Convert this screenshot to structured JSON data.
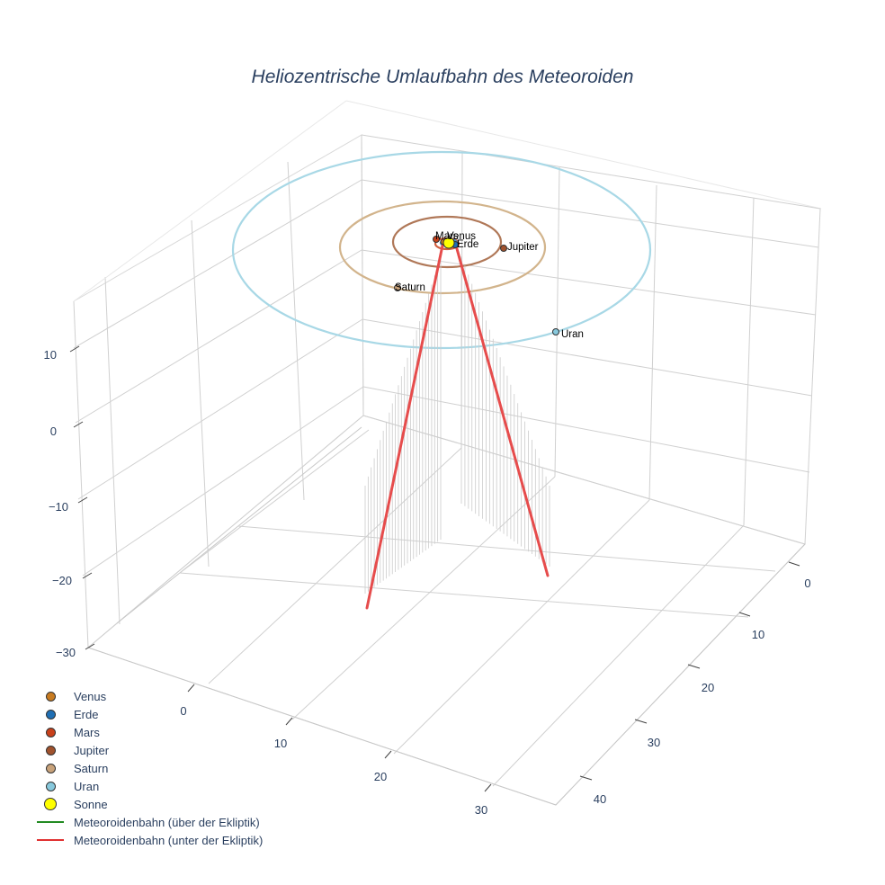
{
  "chart_data": {
    "type": "scatter3d",
    "title": "Heliozentrische Umlaufbahn des Meteoroiden",
    "axes": {
      "x": {
        "ticks": [
          "0",
          "10",
          "20",
          "30"
        ],
        "range_approx": [
          -3,
          35
        ]
      },
      "y": {
        "ticks": [
          "0",
          "10",
          "20",
          "30",
          "40"
        ],
        "range_approx": [
          -3,
          45
        ]
      },
      "z": {
        "ticks": [
          "10",
          "0",
          "−10",
          "−20",
          "−30"
        ],
        "range_approx": [
          -30,
          16
        ]
      }
    },
    "legend_position": "bottom-left",
    "series": [
      {
        "name": "Venus",
        "type": "marker",
        "color": "#c87b20",
        "label": "Venus"
      },
      {
        "name": "Erde",
        "type": "marker",
        "color": "#1f6fb4",
        "label": "Erde"
      },
      {
        "name": "Mars",
        "type": "marker",
        "color": "#c8401a",
        "label": "Mars"
      },
      {
        "name": "Jupiter",
        "type": "marker",
        "color": "#a0522d",
        "label": "Jupiter"
      },
      {
        "name": "Saturn",
        "type": "marker",
        "color": "#c8a27a",
        "label": "Saturn"
      },
      {
        "name": "Uran",
        "type": "marker",
        "color": "#87c8dc",
        "label": "Uran"
      },
      {
        "name": "Sonne",
        "type": "marker",
        "color": "#ffff00",
        "label": ""
      },
      {
        "name": "Meteoroidenbahn (über der Ekliptik)",
        "type": "line",
        "color": "#228b22"
      },
      {
        "name": "Meteoroidenbahn (unter der Ekliptik)",
        "type": "line",
        "color": "#e03030"
      }
    ],
    "orbits": [
      {
        "planet": "Uran",
        "color": "#a8d8e6"
      },
      {
        "planet": "Saturn",
        "color": "#d2b48c"
      },
      {
        "planet": "Jupiter",
        "color": "#b07858"
      },
      {
        "planet": "Mars",
        "color": "#d06040"
      },
      {
        "planet": "Erde",
        "color": "#4a90c8"
      },
      {
        "planet": "Venus",
        "color": "#e0a040"
      }
    ]
  },
  "title": "Heliozentrische Umlaufbahn des Meteoroiden",
  "labels": {
    "mars": "Mars",
    "venus": "Venus",
    "erde": "Erde",
    "jupiter": "Jupiter",
    "saturn": "Saturn",
    "uran": "Uran"
  },
  "ticks": {
    "z": [
      "10",
      "0",
      "−10",
      "−20",
      "−30"
    ],
    "x": [
      "0",
      "10",
      "20",
      "30"
    ],
    "y": [
      "0",
      "10",
      "20",
      "30",
      "40"
    ]
  },
  "legend": [
    {
      "label": "Venus",
      "color": "#c87b20",
      "kind": "dot"
    },
    {
      "label": "Erde",
      "color": "#1f6fb4",
      "kind": "dot"
    },
    {
      "label": "Mars",
      "color": "#c8401a",
      "kind": "dot"
    },
    {
      "label": "Jupiter",
      "color": "#a0522d",
      "kind": "dot"
    },
    {
      "label": "Saturn",
      "color": "#c8a27a",
      "kind": "dot"
    },
    {
      "label": "Uran",
      "color": "#87c8dc",
      "kind": "dot"
    },
    {
      "label": "Sonne",
      "color": "#ffff00",
      "kind": "bigdot"
    },
    {
      "label": "Meteoroidenbahn (über der Ekliptik)",
      "color": "#228b22",
      "kind": "line"
    },
    {
      "label": "Meteoroidenbahn (unter der Ekliptik)",
      "color": "#e03030",
      "kind": "line"
    }
  ]
}
